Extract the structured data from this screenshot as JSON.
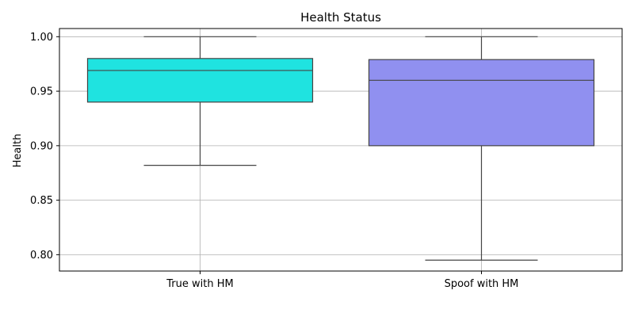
{
  "chart_data": {
    "type": "box",
    "title": "Health Status",
    "xlabel": "",
    "ylabel": "Health",
    "ylim": [
      0.785,
      1.0075
    ],
    "yticks": [
      0.8,
      0.85,
      0.9,
      0.95,
      1.0
    ],
    "ytick_labels": [
      "0.80",
      "0.85",
      "0.90",
      "0.95",
      "1.00"
    ],
    "grid": true,
    "categories": [
      "True with HM",
      "Spoof with HM"
    ],
    "boxes": [
      {
        "name": "True with HM",
        "color": "#1fe3e0",
        "whisker_low": 0.882,
        "q1": 0.94,
        "median": 0.969,
        "q3": 0.98,
        "whisker_high": 1.0
      },
      {
        "name": "Spoof with HM",
        "color": "#9090f0",
        "whisker_low": 0.795,
        "q1": 0.9,
        "median": 0.96,
        "q3": 0.979,
        "whisker_high": 1.0
      }
    ]
  }
}
